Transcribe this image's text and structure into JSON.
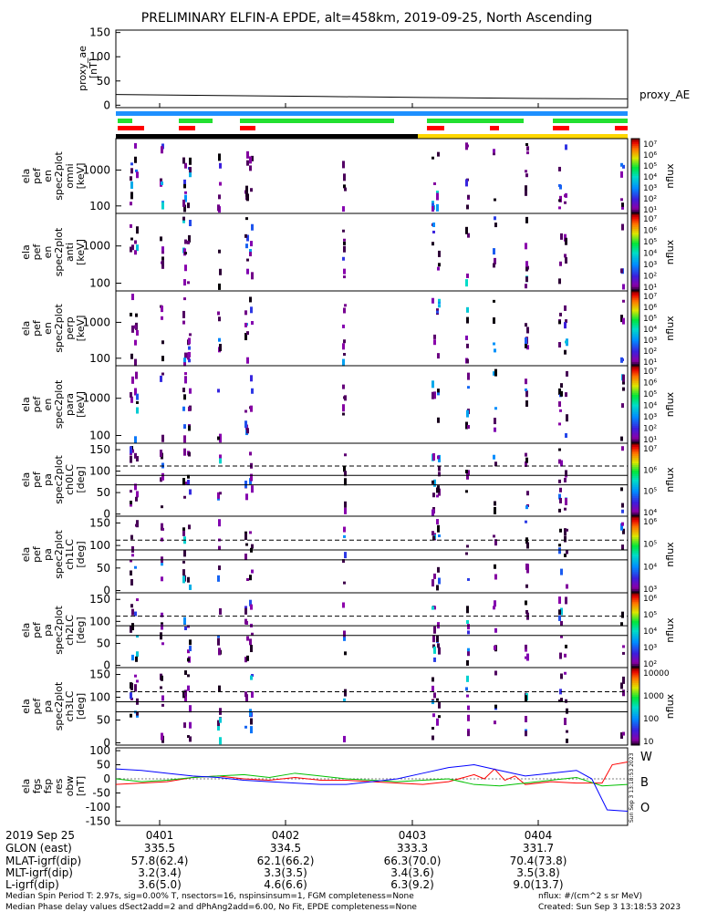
{
  "title": "PRELIMINARY ELFIN-A EPDE, alt=458km, 2019-09-25, North Ascending",
  "colors": {
    "bar_blue": "#1e90ff",
    "bar_green": "#22e030",
    "bar_red": "#ff0000",
    "bar_black": "#000000",
    "bar_yellow": "#ffd700",
    "line_w": "#ff0000",
    "line_b": "#00c000",
    "line_o": "#0000ff"
  },
  "chart_data": [
    {
      "type": "line",
      "panel": "proxy_ae",
      "ylabel_lines": [
        "proxy_ae",
        "[nT]"
      ],
      "yticks": [
        "150",
        "100",
        "50",
        "0"
      ],
      "ylim": [
        -5,
        155
      ],
      "series": [
        {
          "name": "proxy_AE",
          "x": [
            0,
            0.2,
            0.4,
            0.6,
            0.8,
            1.0
          ],
          "values": [
            22,
            20,
            18,
            16,
            14,
            13
          ]
        }
      ]
    },
    {
      "type": "heatmap",
      "panel": "omni",
      "label_lines": [
        "ela",
        "pef",
        "en",
        "spec2plot",
        "omni",
        "[keV]"
      ],
      "yticks": [
        "1000",
        "100"
      ],
      "cbar_label": "nflux",
      "cbar_ticks": [
        "10⁷",
        "10⁶",
        "10⁵",
        "10⁴",
        "10³",
        "10²",
        "10¹"
      ]
    },
    {
      "type": "heatmap",
      "panel": "anti",
      "label_lines": [
        "ela",
        "pef",
        "en",
        "spec2plot",
        "anti",
        "[keV]"
      ],
      "yticks": [
        "1000",
        "100"
      ],
      "cbar_label": "nflux",
      "cbar_ticks": [
        "10⁷",
        "10⁶",
        "10⁵",
        "10⁴",
        "10³",
        "10²",
        "10¹"
      ]
    },
    {
      "type": "heatmap",
      "panel": "perp",
      "label_lines": [
        "ela",
        "pef",
        "en",
        "spec2plot",
        "perp",
        "[keV]"
      ],
      "yticks": [
        "1000",
        "100"
      ],
      "cbar_label": "nflux",
      "cbar_ticks": [
        "10⁷",
        "10⁶",
        "10⁵",
        "10⁴",
        "10³",
        "10²",
        "10¹"
      ]
    },
    {
      "type": "heatmap",
      "panel": "para",
      "label_lines": [
        "ela",
        "pef",
        "en",
        "spec2plot",
        "para",
        "[keV]"
      ],
      "yticks": [
        "1000",
        "100"
      ],
      "cbar_label": "nflux",
      "cbar_ticks": [
        "10⁷",
        "10⁶",
        "10⁵",
        "10⁴",
        "10³",
        "10²",
        "10¹"
      ]
    },
    {
      "type": "heatmap",
      "panel": "ch0LC",
      "label_lines": [
        "ela",
        "pef",
        "pa",
        "spec2plot",
        "ch0LC",
        "[deg]"
      ],
      "yticks": [
        "150",
        "100",
        "50",
        "0"
      ],
      "cbar_label": "nflux",
      "cbar_ticks": [
        "10⁷",
        "10⁶",
        "10⁵",
        "10⁴"
      ]
    },
    {
      "type": "heatmap",
      "panel": "ch1LC",
      "label_lines": [
        "ela",
        "pef",
        "pa",
        "spec2plot",
        "ch1LC",
        "[deg]"
      ],
      "yticks": [
        "150",
        "100",
        "50",
        "0"
      ],
      "cbar_label": "nflux",
      "cbar_ticks": [
        "10⁶",
        "10⁵",
        "10⁴",
        "10³"
      ]
    },
    {
      "type": "heatmap",
      "panel": "ch2LC",
      "label_lines": [
        "ela",
        "pef",
        "pa",
        "spec2plot",
        "ch2LC",
        "[deg]"
      ],
      "yticks": [
        "150",
        "100",
        "50",
        "0"
      ],
      "cbar_label": "nflux",
      "cbar_ticks": [
        "10⁶",
        "10⁵",
        "10⁴",
        "10³",
        "10²"
      ]
    },
    {
      "type": "heatmap",
      "panel": "ch3LC",
      "label_lines": [
        "ela",
        "pef",
        "pa",
        "spec2plot",
        "ch3LC",
        "[deg]"
      ],
      "yticks": [
        "150",
        "100",
        "50",
        "0"
      ],
      "cbar_label": "nflux",
      "cbar_ticks": [
        "10000",
        "1000",
        "100",
        "10"
      ]
    },
    {
      "type": "line",
      "panel": "fgs",
      "ylabel_lines": [
        "ela",
        "fgs",
        "fsp",
        "res",
        "obw",
        "[nT]"
      ],
      "yticks": [
        "100",
        "50",
        "0",
        "-50",
        "-100",
        "-150"
      ],
      "ylim": [
        -165,
        110
      ],
      "series": [
        {
          "name": "W",
          "color": "#ff0000",
          "x": [
            0,
            0.05,
            0.1,
            0.15,
            0.2,
            0.25,
            0.3,
            0.35,
            0.4,
            0.45,
            0.5,
            0.55,
            0.6,
            0.65,
            0.7,
            0.72,
            0.74,
            0.76,
            0.78,
            0.8,
            0.85,
            0.9,
            0.95,
            0.97,
            1.0
          ],
          "values": [
            -20,
            -15,
            -10,
            5,
            10,
            0,
            -5,
            5,
            -5,
            -5,
            -10,
            -15,
            -20,
            -10,
            15,
            0,
            35,
            -5,
            10,
            -20,
            -10,
            -15,
            -15,
            50,
            60
          ]
        },
        {
          "name": "B",
          "color": "#00c000",
          "x": [
            0,
            0.05,
            0.1,
            0.15,
            0.2,
            0.25,
            0.3,
            0.35,
            0.4,
            0.45,
            0.5,
            0.55,
            0.6,
            0.65,
            0.7,
            0.75,
            0.8,
            0.85,
            0.9,
            0.95,
            1.0
          ],
          "values": [
            0,
            -10,
            -5,
            5,
            10,
            15,
            5,
            20,
            10,
            0,
            -5,
            -10,
            -5,
            0,
            -20,
            -25,
            -15,
            -5,
            5,
            -25,
            -20
          ]
        },
        {
          "name": "O",
          "color": "#0000ff",
          "x": [
            0,
            0.05,
            0.1,
            0.15,
            0.2,
            0.25,
            0.3,
            0.35,
            0.4,
            0.45,
            0.5,
            0.55,
            0.6,
            0.65,
            0.7,
            0.75,
            0.8,
            0.85,
            0.9,
            0.93,
            0.96,
            1.0
          ],
          "values": [
            35,
            30,
            20,
            10,
            5,
            -5,
            -10,
            -15,
            -20,
            -20,
            -10,
            0,
            20,
            40,
            50,
            30,
            10,
            20,
            30,
            0,
            -110,
            -115
          ]
        }
      ]
    }
  ],
  "legend": {
    "W": "W",
    "B": "B",
    "O": "O"
  },
  "bottom_table": {
    "rows": [
      [
        "2019 Sep 25",
        "0401",
        "0402",
        "0403",
        "0404"
      ],
      [
        "GLON (east)",
        "335.5",
        "334.5",
        "333.3",
        "331.7"
      ],
      [
        "MLAT-igrf(dip)",
        "57.8(62.4)",
        "62.1(66.2)",
        "66.3(70.0)",
        "70.4(73.8)"
      ],
      [
        "MLT-igrf(dip)",
        "3.2(3.4)",
        "3.3(3.5)",
        "3.4(3.6)",
        "3.5(3.8)"
      ],
      [
        "L-igrf(dip)",
        "3.6(5.0)",
        "4.6(6.6)",
        "6.3(9.2)",
        "9.0(13.7)"
      ]
    ]
  },
  "footer": {
    "left1": "Median Spin Period T: 2.97s, sig=0.00% T, nsectors=16, nspinsinsum=1, FGM completeness=None",
    "left2": "Median Phase delay values dSect2add=2 and dPhAng2add=6.00, No Fit, EPDE completeness=None",
    "right1": "nflux: #/(cm^2 s sr MeV)",
    "right2": "Created: Sun Sep  3 13:18:53 2023",
    "side_stamp": "Sun Sep  3 13:18:53 2023"
  }
}
